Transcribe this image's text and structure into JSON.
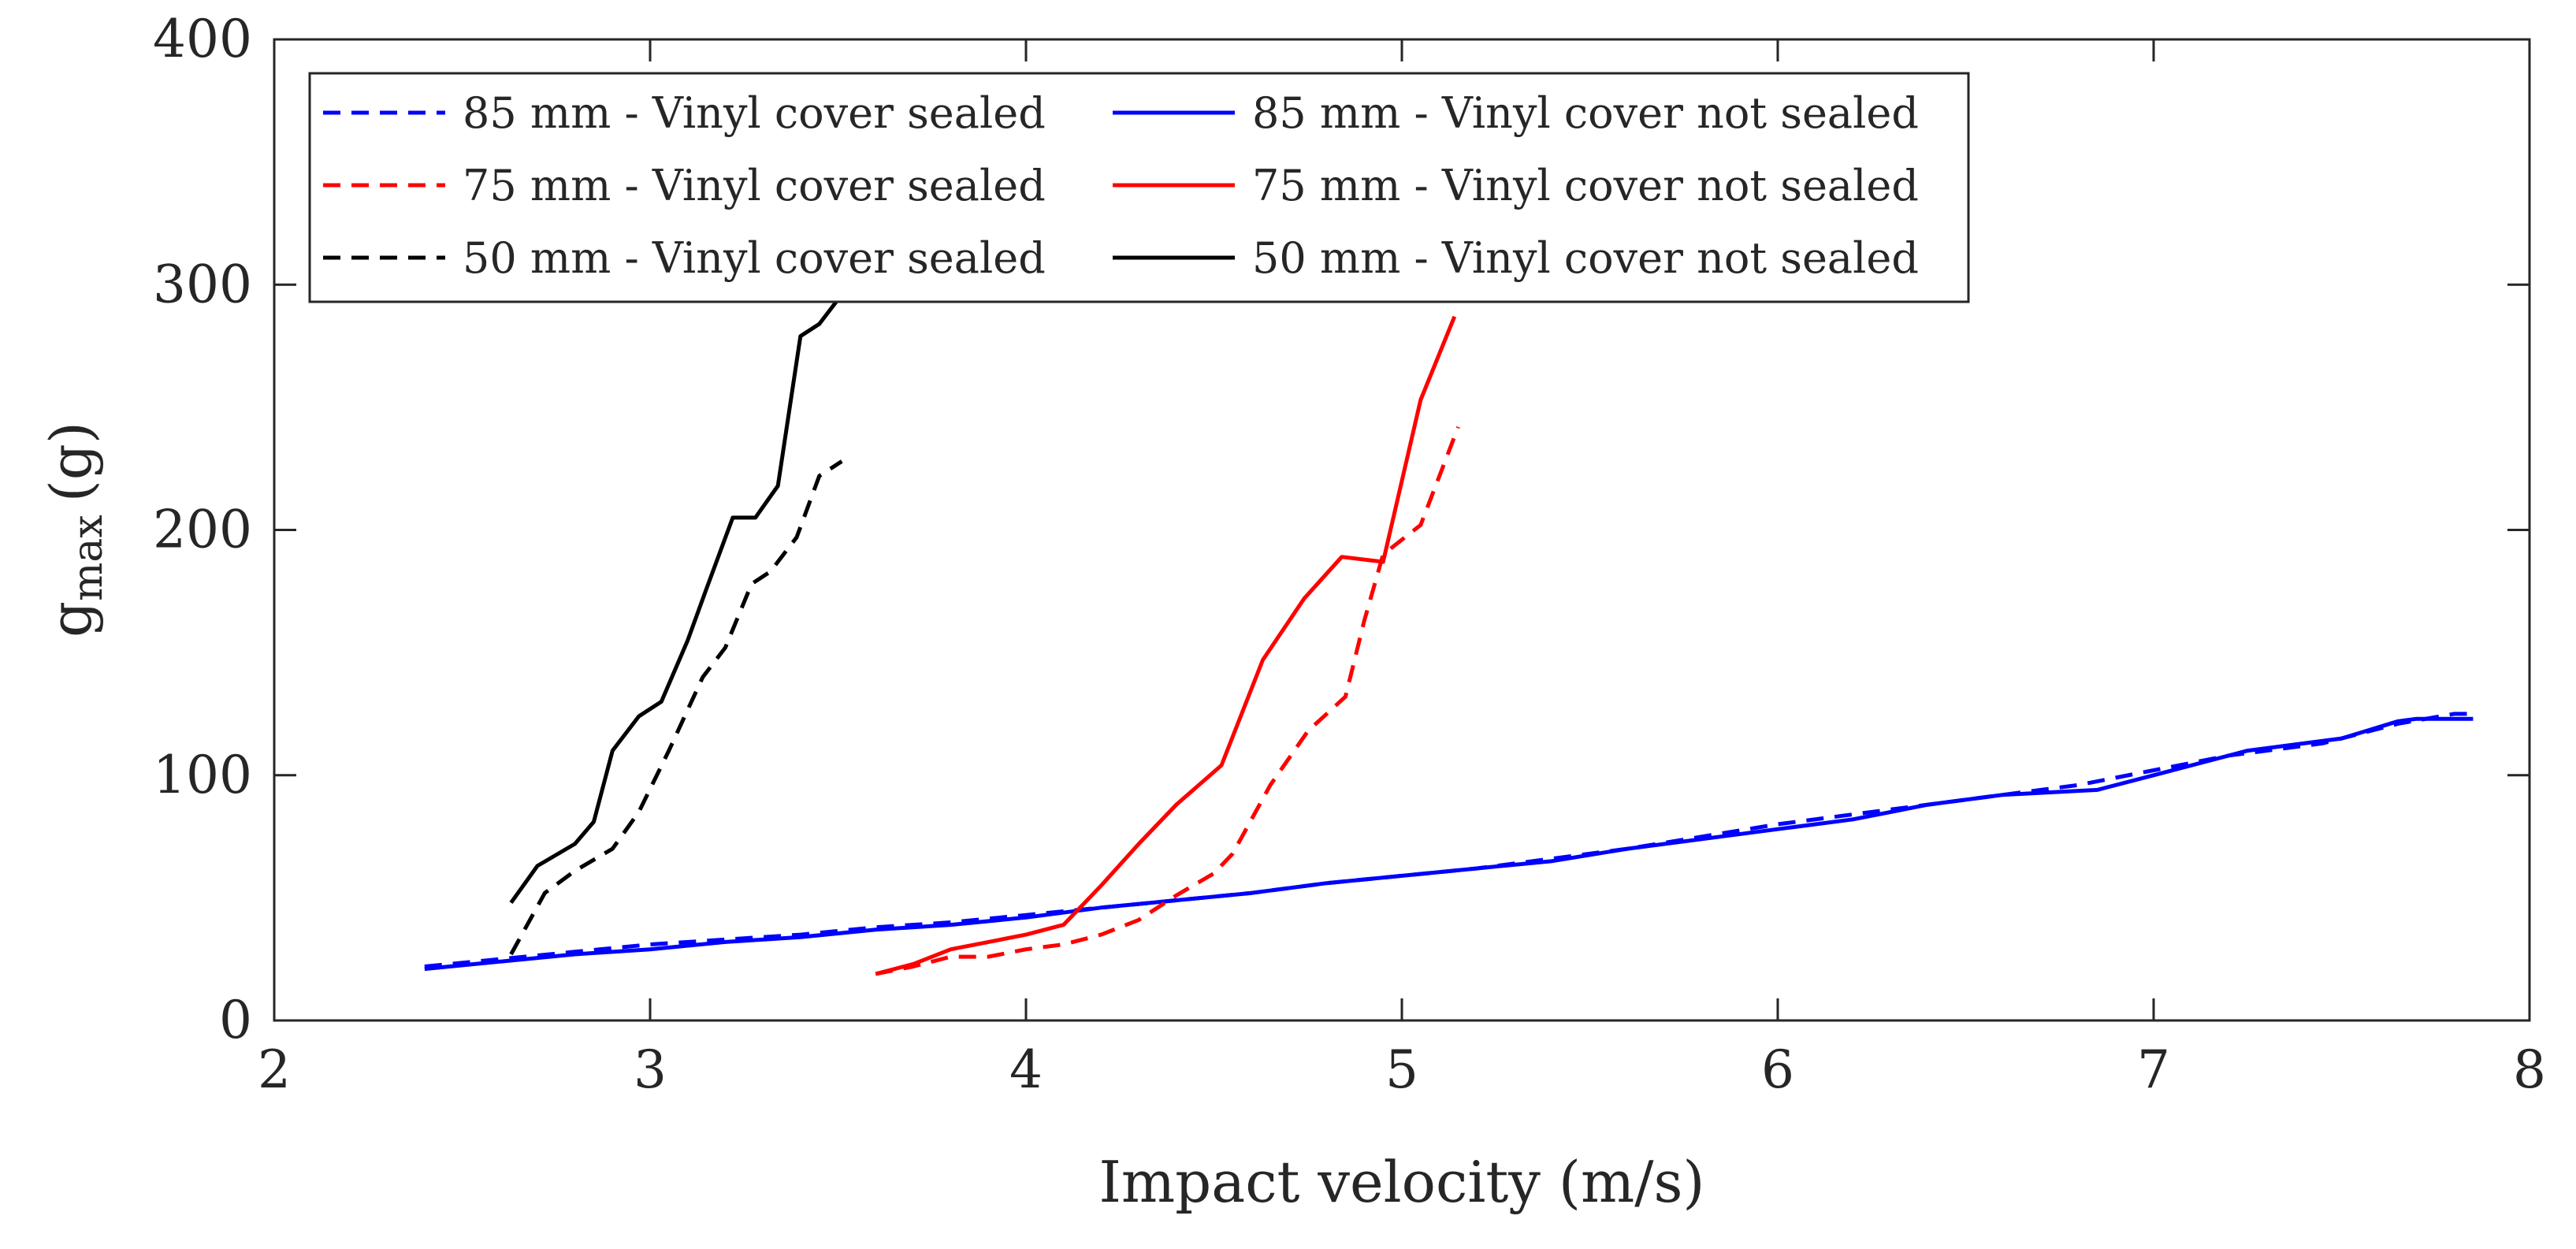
{
  "chart_data": {
    "type": "line",
    "title": "",
    "xlabel": "Impact velocity (m/s)",
    "ylabel": {
      "main": "g",
      "subscript": "max",
      "unit": "(g)"
    },
    "xlim": [
      2,
      8
    ],
    "ylim": [
      0,
      400
    ],
    "xticks": [
      2,
      3,
      4,
      5,
      6,
      7,
      8
    ],
    "yticks": [
      0,
      100,
      200,
      300,
      400
    ],
    "grid": false,
    "legend_position": "top-left",
    "series": [
      {
        "name": "85 mm - Vinyl cover sealed",
        "color": "#0000ff",
        "style": "dashed",
        "x": [
          2.4,
          2.6,
          2.8,
          3.0,
          3.2,
          3.4,
          3.6,
          3.8,
          4.0,
          4.2,
          4.4,
          4.6,
          4.8,
          5.0,
          5.2,
          5.4,
          5.6,
          5.8,
          6.0,
          6.2,
          6.4,
          6.6,
          6.8,
          7.0,
          7.2,
          7.3,
          7.45,
          7.65,
          7.8,
          7.85
        ],
        "y": [
          22,
          25,
          28,
          31,
          33,
          35,
          38,
          40,
          43,
          46,
          49,
          52,
          56,
          59,
          62,
          66,
          70,
          75,
          80,
          84,
          88,
          92,
          96,
          102,
          108,
          110,
          113,
          121,
          125,
          125
        ]
      },
      {
        "name": "85 mm - Vinyl cover not sealed",
        "color": "#0000ff",
        "style": "solid",
        "x": [
          2.4,
          2.6,
          2.8,
          3.0,
          3.2,
          3.4,
          3.6,
          3.8,
          4.0,
          4.2,
          4.4,
          4.6,
          4.8,
          5.0,
          5.2,
          5.4,
          5.6,
          5.8,
          6.0,
          6.2,
          6.4,
          6.6,
          6.85,
          7.0,
          7.25,
          7.5,
          7.65,
          7.7,
          7.85
        ],
        "y": [
          21,
          24,
          27,
          29,
          32,
          34,
          37,
          39,
          42,
          46,
          49,
          52,
          56,
          59,
          62,
          65,
          70,
          74,
          78,
          82,
          88,
          92,
          94,
          100,
          110,
          115,
          122,
          123,
          123
        ]
      },
      {
        "name": "75 mm - Vinyl cover sealed",
        "color": "#ff0000",
        "style": "dashed",
        "x": [
          3.6,
          3.7,
          3.8,
          3.9,
          4.0,
          4.1,
          4.2,
          4.3,
          4.4,
          4.5,
          4.55,
          4.65,
          4.75,
          4.85,
          4.9,
          4.95,
          5.05,
          5.15
        ],
        "y": [
          19,
          22,
          26,
          26,
          29,
          31,
          35,
          41,
          51,
          60,
          68,
          96,
          118,
          132,
          163,
          190,
          202,
          242
        ]
      },
      {
        "name": "75 mm - Vinyl cover not sealed",
        "color": "#ff0000",
        "style": "solid",
        "x": [
          3.6,
          3.7,
          3.8,
          3.9,
          4.0,
          4.1,
          4.2,
          4.3,
          4.4,
          4.52,
          4.63,
          4.74,
          4.84,
          4.95,
          5.05,
          5.14
        ],
        "y": [
          19,
          23,
          29,
          32,
          35,
          39,
          55,
          72,
          88,
          104,
          147,
          172,
          189,
          187,
          253,
          287
        ]
      },
      {
        "name": "50 mm - Vinyl cover sealed",
        "color": "#000000",
        "style": "dashed",
        "x": [
          2.63,
          2.72,
          2.8,
          2.9,
          2.97,
          3.05,
          3.14,
          3.2,
          3.27,
          3.32,
          3.39,
          3.45,
          3.51
        ],
        "y": [
          27,
          52,
          61,
          70,
          85,
          110,
          140,
          152,
          178,
          183,
          197,
          222,
          228
        ]
      },
      {
        "name": "50 mm - Vinyl cover not sealed",
        "color": "#000000",
        "style": "solid",
        "x": [
          2.63,
          2.7,
          2.8,
          2.85,
          2.9,
          2.97,
          3.03,
          3.1,
          3.15,
          3.22,
          3.28,
          3.34,
          3.4,
          3.45,
          3.51
        ],
        "y": [
          48,
          63,
          72,
          81,
          110,
          124,
          130,
          155,
          176,
          205,
          205,
          218,
          279,
          284,
          296
        ]
      }
    ]
  }
}
